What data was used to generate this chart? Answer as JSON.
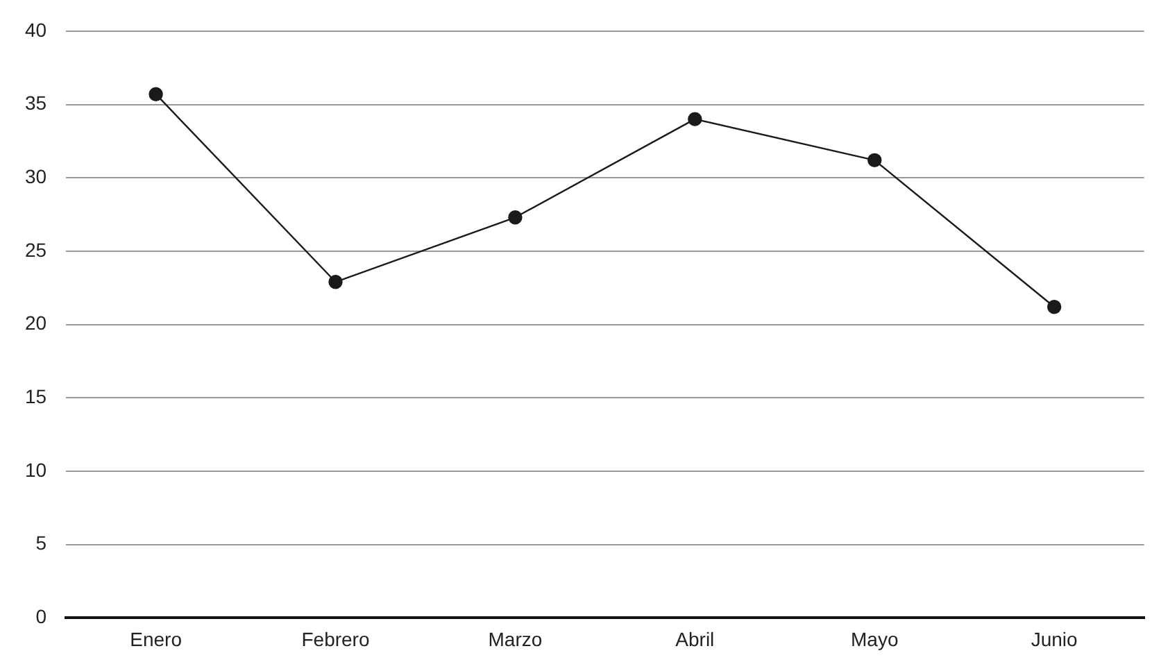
{
  "chart_data": {
    "type": "line",
    "categories": [
      "Enero",
      "Febrero",
      "Marzo",
      "Abril",
      "Mayo",
      "Junio"
    ],
    "series": [
      {
        "color": "#1a1a1a",
        "values": [
          35.7,
          22.9,
          27.3,
          34.0,
          31.2,
          21.2
        ]
      }
    ],
    "ylim": [
      0,
      40
    ],
    "yticks": [
      0,
      5,
      10,
      15,
      20,
      25,
      30,
      35,
      40
    ],
    "grid": "y",
    "legend": false,
    "marker": "circle",
    "line_style": "solid"
  }
}
